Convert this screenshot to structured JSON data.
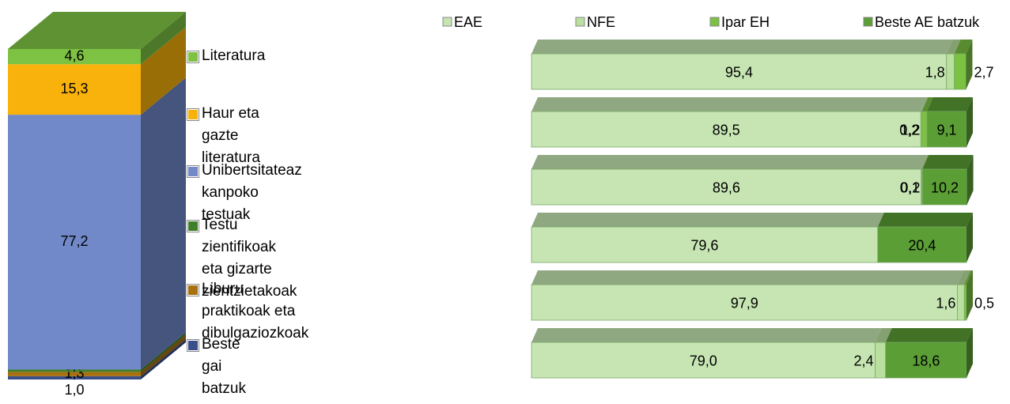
{
  "chart_data": [
    {
      "type": "column",
      "categories": [
        "Beste gai batzuk",
        "Liburu praktikoak eta dibulgaziozkoak",
        "Testu zientifikoak eta gizarte zientzietakoak",
        "Unibertsitateaz kanpoko testuak",
        "Haur eta gazte literatura",
        "Literatura"
      ],
      "values": [
        1.0,
        1.3,
        0.7,
        77.2,
        15.3,
        4.6
      ],
      "value_labels": [
        "1,0",
        "1,3",
        "0,7",
        "77,2",
        "15,3",
        "4,6"
      ],
      "colors": [
        "#3a4f8a",
        "#a8700e",
        "#3f7f2a",
        "#7189c9",
        "#f9b10b",
        "#7dc242"
      ]
    },
    {
      "type": "hbar",
      "categories": [
        null,
        null,
        null,
        null,
        null,
        null
      ],
      "series": [
        {
          "name": "EAE",
          "color": "#c6e5b3",
          "values": [
            95.4,
            89.5,
            89.6,
            79.6,
            97.9,
            79.0
          ],
          "value_labels": [
            "95,4",
            "89,5",
            "89,6",
            "79,6",
            "97,9",
            "79,0"
          ]
        },
        {
          "name": "NFE",
          "color": "#b9e09e",
          "values": [
            1.8,
            0.2,
            0.1,
            null,
            1.6,
            2.4
          ],
          "value_labels": [
            "1,8",
            "0,2",
            "0,1",
            null,
            "1,6",
            "2,4"
          ]
        },
        {
          "name": "Ipar EH",
          "color": "#7cc242",
          "values": [
            2.7,
            1.2,
            0.2,
            null,
            0.5,
            null
          ],
          "value_labels": [
            "2,7",
            "1,2",
            "0,2",
            null,
            "0,5",
            null
          ]
        },
        {
          "name": "Beste AE batzuk",
          "color": "#5a9e35",
          "values": [
            null,
            9.1,
            10.2,
            20.4,
            null,
            18.6
          ],
          "value_labels": [
            null,
            "9,1",
            "10,2",
            "20,4",
            null,
            "18,6"
          ]
        }
      ]
    }
  ]
}
